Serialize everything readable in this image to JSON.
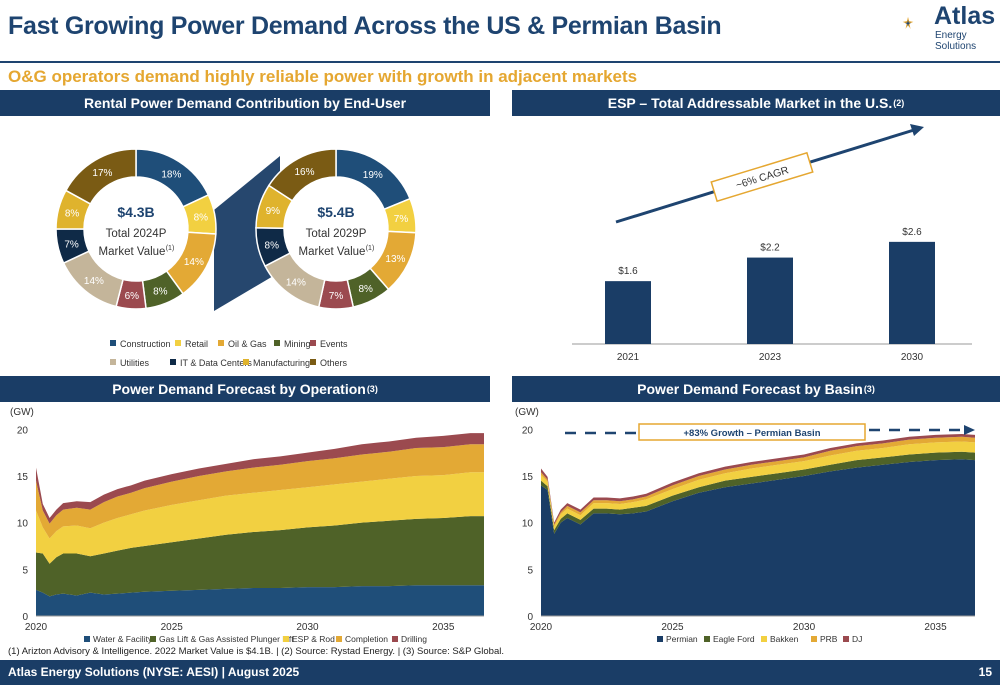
{
  "header": {
    "title": "Fast Growing Power Demand Across the US & Permian Basin",
    "subtitle": "O&G operators demand highly reliable power with growth in adjacent markets",
    "logo_name": "Atlas",
    "logo_sub": "Energy Solutions"
  },
  "panels": {
    "rental": {
      "title": "Rental Power Demand Contribution by End-User"
    },
    "esp": {
      "title": "ESP – Total Addressable Market in the U.S.",
      "note": "(2)"
    },
    "operation": {
      "title": "Power Demand Forecast by Operation",
      "note": "(3)"
    },
    "basin": {
      "title": "Power Demand Forecast by Basin",
      "note": "(3)"
    }
  },
  "colors": {
    "navy": "#1a3d66",
    "construction": "#1f4e79",
    "retail": "#f2d041",
    "oilgas": "#e3a935",
    "mining": "#4f6228",
    "events": "#9b4a4f",
    "utilities": "#c4b59a",
    "it": "#0f2a47",
    "manufacturing": "#dfb32d",
    "others": "#7a5b14",
    "gold": "#e5a731"
  },
  "chart_data": [
    {
      "type": "pie",
      "title": "$4.3B",
      "subtitle": "Total 2024P",
      "subtitle2": "Market Value",
      "note": "(1)",
      "slices": [
        {
          "name": "Construction",
          "value": 18,
          "label": "18%"
        },
        {
          "name": "Retail",
          "value": 8,
          "label": "8%"
        },
        {
          "name": "Oil & Gas",
          "value": 14,
          "label": "14%"
        },
        {
          "name": "Mining",
          "value": 8,
          "label": "8%"
        },
        {
          "name": "Events",
          "value": 6,
          "label": "6%"
        },
        {
          "name": "Utilities",
          "value": 14,
          "label": "14%"
        },
        {
          "name": "IT & Data Centers",
          "value": 7,
          "label": "7%"
        },
        {
          "name": "Manufacturing",
          "value": 8,
          "label": "8%"
        },
        {
          "name": "Others",
          "value": 17,
          "label": "17%"
        }
      ],
      "legend": [
        "Construction",
        "Retail",
        "Oil & Gas",
        "Mining",
        "Events",
        "Utilities",
        "IT & Data Centers",
        "Manufacturing",
        "Others"
      ]
    },
    {
      "type": "pie",
      "title": "$5.4B",
      "subtitle": "Total 2029P",
      "subtitle2": "Market Value",
      "note": "(1)",
      "slices": [
        {
          "name": "Construction",
          "value": 19,
          "label": "19%"
        },
        {
          "name": "Retail",
          "value": 7,
          "label": "7%"
        },
        {
          "name": "Oil & Gas",
          "value": 13,
          "label": "13%"
        },
        {
          "name": "Mining",
          "value": 8,
          "label": "8%"
        },
        {
          "name": "Events",
          "value": 7,
          "label": "7%"
        },
        {
          "name": "Utilities",
          "value": 14,
          "label": "14%"
        },
        {
          "name": "IT & Data Centers",
          "value": 8,
          "label": "8%"
        },
        {
          "name": "Manufacturing",
          "value": 9,
          "label": "9%"
        },
        {
          "name": "Others",
          "value": 16,
          "label": "16%"
        }
      ]
    },
    {
      "type": "bar",
      "categories": [
        "2021",
        "2023",
        "2030"
      ],
      "values": [
        1.6,
        2.2,
        2.6
      ],
      "labels": [
        "$1.6",
        "$2.2",
        "$2.6"
      ],
      "ylim": [
        0,
        3
      ],
      "annotation": "~6% CAGR"
    },
    {
      "type": "area",
      "ylabel": "(GW)",
      "x": [
        2020,
        2020.25,
        2020.5,
        2020.75,
        2021,
        2021.5,
        2022,
        2022.5,
        2023,
        2023.5,
        2024,
        2025,
        2026,
        2027,
        2028,
        2029,
        2030,
        2031,
        2032,
        2033,
        2034,
        2035,
        2036,
        2036.5
      ],
      "xticks": [
        2020,
        2025,
        2030,
        2035
      ],
      "yticks": [
        0,
        5,
        10,
        15,
        20
      ],
      "ylim": [
        0,
        21
      ],
      "series": [
        {
          "name": "Water & Facility",
          "values": [
            2.8,
            2.5,
            2.1,
            2.3,
            2.4,
            2.2,
            2.5,
            2.3,
            2.4,
            2.5,
            2.6,
            2.7,
            2.8,
            2.9,
            3.0,
            3.0,
            3.1,
            3.1,
            3.2,
            3.2,
            3.3,
            3.3,
            3.3,
            3.3
          ]
        },
        {
          "name": "Gas Lift & Gas Assisted Plunger Lift",
          "values": [
            4.0,
            4.2,
            3.5,
            4.0,
            4.3,
            4.5,
            3.9,
            4.4,
            4.6,
            4.8,
            4.9,
            5.2,
            5.5,
            5.8,
            6.0,
            6.2,
            6.4,
            6.6,
            6.8,
            7.0,
            7.1,
            7.2,
            7.4,
            7.4
          ]
        },
        {
          "name": "ESP & Rod",
          "values": [
            4.5,
            2.8,
            2.7,
            2.8,
            2.9,
            3.0,
            3.0,
            3.3,
            3.5,
            3.6,
            3.8,
            4.0,
            4.1,
            4.2,
            4.2,
            4.3,
            4.3,
            4.4,
            4.4,
            4.5,
            4.6,
            4.6,
            4.7,
            4.7
          ]
        },
        {
          "name": "Completion",
          "values": [
            3.2,
            1.8,
            1.6,
            1.7,
            1.8,
            1.9,
            2.0,
            2.2,
            2.3,
            2.3,
            2.4,
            2.5,
            2.6,
            2.6,
            2.7,
            2.7,
            2.8,
            2.8,
            2.9,
            2.9,
            3.0,
            3.0,
            3.0,
            3.0
          ]
        },
        {
          "name": "Drilling",
          "values": [
            1.4,
            0.7,
            0.6,
            0.6,
            0.7,
            0.7,
            0.8,
            0.8,
            0.8,
            0.8,
            0.8,
            0.8,
            0.8,
            0.8,
            0.9,
            0.9,
            0.9,
            1.0,
            1.1,
            1.1,
            1.1,
            1.2,
            1.2,
            1.2
          ]
        }
      ]
    },
    {
      "type": "area",
      "ylabel": "(GW)",
      "annotation": "+83% Growth – Permian Basin",
      "x": [
        2020,
        2020.25,
        2020.5,
        2020.75,
        2021,
        2021.5,
        2022,
        2022.5,
        2023,
        2023.5,
        2024,
        2025,
        2026,
        2027,
        2028,
        2029,
        2030,
        2031,
        2032,
        2033,
        2034,
        2035,
        2036,
        2036.5
      ],
      "xticks": [
        2020,
        2025,
        2030,
        2035
      ],
      "yticks": [
        0,
        5,
        10,
        15,
        20
      ],
      "ylim": [
        0,
        21
      ],
      "series": [
        {
          "name": "Permian",
          "values": [
            14.0,
            13.5,
            8.8,
            10.0,
            10.5,
            9.8,
            11.0,
            11.0,
            10.9,
            11.0,
            11.2,
            12.3,
            13.2,
            13.8,
            14.2,
            14.6,
            15.0,
            15.5,
            15.9,
            16.2,
            16.5,
            16.7,
            16.8,
            16.7
          ]
        },
        {
          "name": "Eagle Ford",
          "values": [
            0.5,
            0.4,
            0.4,
            0.4,
            0.5,
            0.5,
            0.5,
            0.5,
            0.5,
            0.6,
            0.6,
            0.6,
            0.6,
            0.7,
            0.7,
            0.7,
            0.7,
            0.7,
            0.8,
            0.8,
            0.8,
            0.8,
            0.8,
            0.8
          ]
        },
        {
          "name": "Bakken",
          "values": [
            0.6,
            0.5,
            0.4,
            0.5,
            0.5,
            0.5,
            0.6,
            0.6,
            0.6,
            0.6,
            0.7,
            0.7,
            0.8,
            0.8,
            0.9,
            0.9,
            0.9,
            1.0,
            1.0,
            1.0,
            1.1,
            1.1,
            1.1,
            1.1
          ]
        },
        {
          "name": "PRB",
          "values": [
            0.3,
            0.2,
            0.2,
            0.2,
            0.3,
            0.3,
            0.3,
            0.3,
            0.3,
            0.3,
            0.3,
            0.4,
            0.4,
            0.4,
            0.4,
            0.4,
            0.4,
            0.5,
            0.5,
            0.5,
            0.5,
            0.5,
            0.5,
            0.5
          ]
        },
        {
          "name": "DJ",
          "values": [
            0.4,
            0.3,
            0.2,
            0.3,
            0.3,
            0.3,
            0.3,
            0.3,
            0.3,
            0.3,
            0.3,
            0.3,
            0.3,
            0.3,
            0.3,
            0.3,
            0.3,
            0.3,
            0.3,
            0.3,
            0.3,
            0.3,
            0.3,
            0.3
          ]
        }
      ]
    }
  ],
  "footnote": "(1) Arizton Advisory & Intelligence. 2022 Market Value is $4.1B. | (2) Source: Rystad Energy. | (3) Source: S&P Global.",
  "footer": {
    "text": "Atlas Energy Solutions (NYSE: AESI)  | August 2025",
    "page": "15"
  }
}
